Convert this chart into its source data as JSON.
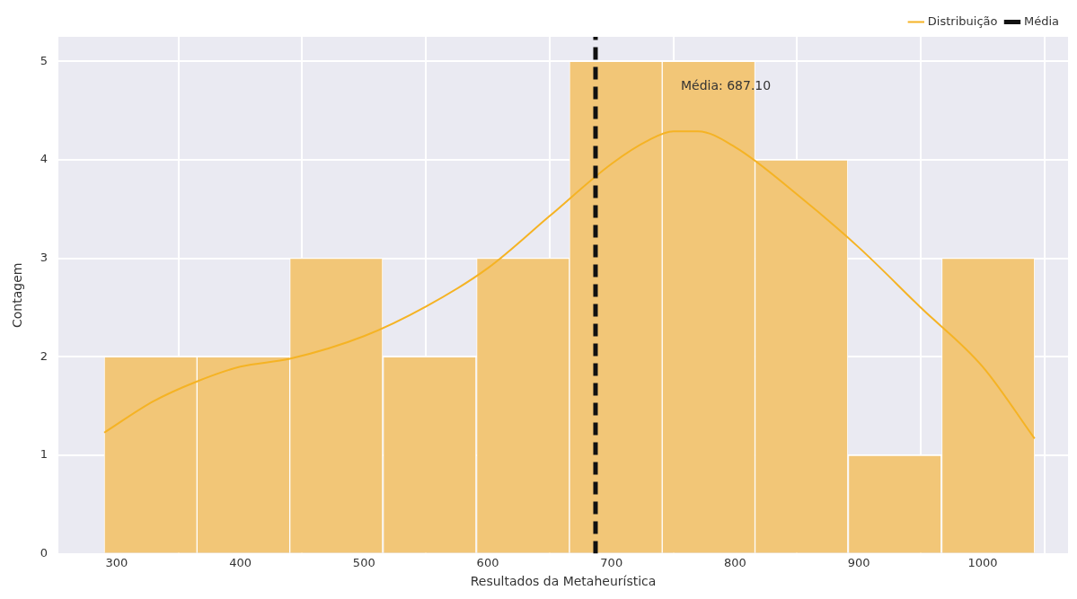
{
  "chart_data": {
    "type": "histogram",
    "xlabel": "Resultados da Metaheurística",
    "ylabel": "Contagem",
    "bins": [
      290,
      365,
      440,
      515,
      591,
      666,
      741,
      816,
      891,
      967,
      1042
    ],
    "values": [
      2,
      2,
      3,
      2,
      3,
      5,
      5,
      4,
      1,
      3
    ],
    "color": "#f2c677",
    "series": [
      {
        "type": "line",
        "name": "Distribuição",
        "color": "#f5b324",
        "x": [
          290,
          330,
          365,
          400,
          440,
          500,
          550,
          600,
          650,
          700,
          730,
          750,
          770,
          800,
          850,
          900,
          950,
          1000,
          1042
        ],
        "values": [
          1.23,
          1.55,
          1.75,
          1.9,
          1.98,
          2.21,
          2.51,
          2.9,
          3.43,
          3.96,
          4.2,
          4.29,
          4.29,
          4.13,
          3.65,
          3.11,
          2.5,
          1.9,
          1.17
        ]
      }
    ],
    "ref_lines": [
      {
        "axis": "x",
        "value": 687.1,
        "label": "Média",
        "color": "#111111",
        "line_style": "dashed"
      }
    ],
    "annotations": [
      "Média: 687.10"
    ],
    "xlim": [
      253,
      1069
    ],
    "ylim": [
      0,
      5.25
    ],
    "xticks": [
      300,
      400,
      500,
      600,
      700,
      800,
      900,
      1000
    ],
    "yticks": [
      0,
      1,
      2,
      3,
      4,
      5
    ],
    "grid": true,
    "legend": "top right"
  }
}
